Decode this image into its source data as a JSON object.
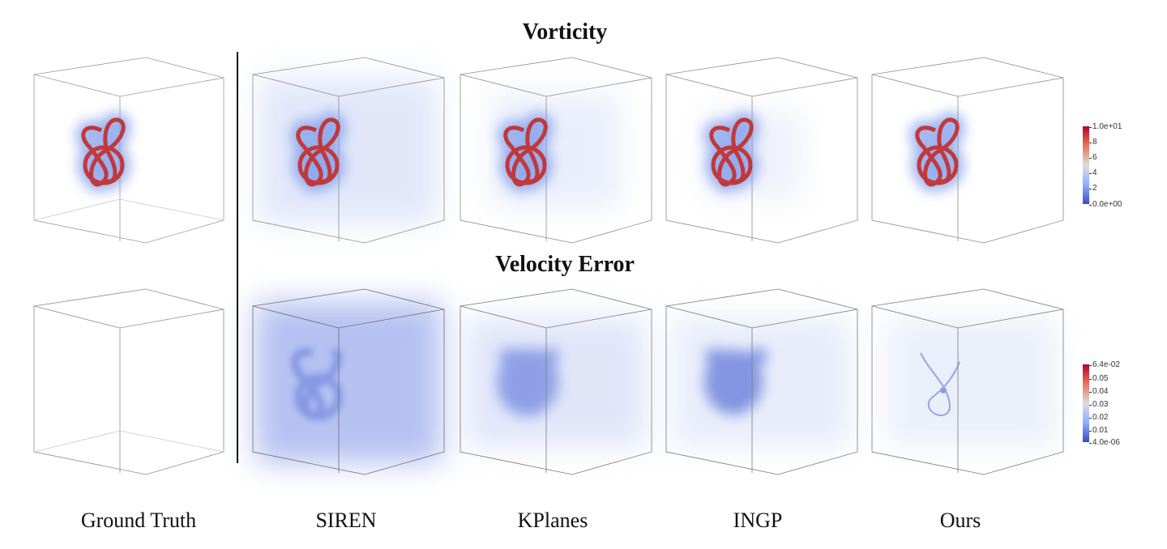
{
  "titles": {
    "top": "Vorticity",
    "bottom": "Velocity Error"
  },
  "columns": [
    "Ground Truth",
    "SIREN",
    "KPlanes",
    "INGP",
    "Ours"
  ],
  "colorbars": {
    "vorticity": {
      "max": "1.0e+01",
      "ticks": [
        "8",
        "6",
        "4",
        "2"
      ],
      "min": "0.0e+00"
    },
    "velocity_error": {
      "max": "6.4e-02",
      "ticks": [
        "0.05",
        "0.04",
        "0.03",
        "0.02",
        "0.01"
      ],
      "min": "4.0e-06"
    }
  },
  "colors": {
    "high": "#b40426",
    "mid": "#dddddd",
    "low": "#3b4cc0"
  }
}
